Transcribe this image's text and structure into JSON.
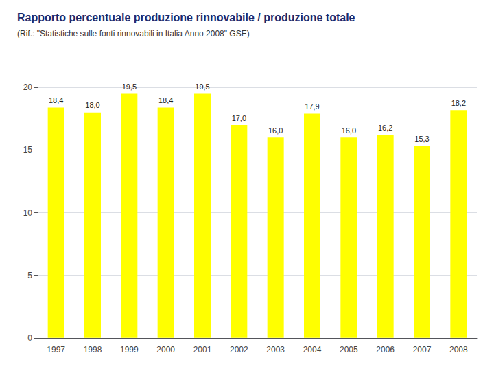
{
  "chart_data": {
    "type": "bar",
    "title": "Rapporto percentuale produzione rinnovabile / produzione totale",
    "subtitle": "(Rif.: \"Statistiche sulle fonti rinnovabili in Italia Anno 2008\" GSE)",
    "categories": [
      "1997",
      "1998",
      "1999",
      "2000",
      "2001",
      "2002",
      "2003",
      "2004",
      "2005",
      "2006",
      "2007",
      "2008"
    ],
    "values": [
      18.4,
      18.0,
      19.5,
      18.4,
      19.5,
      17.0,
      16.0,
      17.9,
      16.0,
      16.2,
      15.3,
      18.2
    ],
    "value_labels": [
      "18,4",
      "18,0",
      "19,5",
      "18,4",
      "19,5",
      "17,0",
      "16,0",
      "17,9",
      "16,0",
      "16,2",
      "15,3",
      "18,2"
    ],
    "data_labels": true,
    "color": "#FFFF00",
    "ylim": [
      -0.175,
      21.5
    ],
    "yticks": [
      0,
      5,
      10,
      15,
      20
    ],
    "grid": true
  }
}
